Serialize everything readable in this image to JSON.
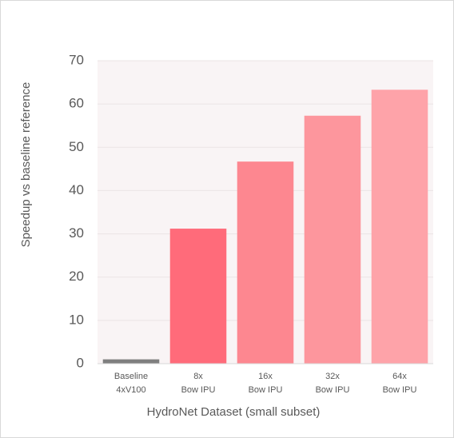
{
  "chart_data": {
    "type": "bar",
    "y_label": "Speedup vs baseline reference",
    "x_label": "HydroNet Dataset (small subset)",
    "categories": [
      [
        "Baseline",
        "4xV100"
      ],
      [
        "8x",
        "Bow IPU"
      ],
      [
        "16x",
        "Bow IPU"
      ],
      [
        "32x",
        "Bow IPU"
      ],
      [
        "64x",
        "Bow IPU"
      ]
    ],
    "values": [
      1,
      31.2,
      46.7,
      57.3,
      63.3
    ],
    "colors": [
      "#7f7f7f",
      "#ff6b7a",
      "#fd8790",
      "#fd969d",
      "#fea3a9"
    ],
    "ylim": [
      0,
      70
    ],
    "yticks": [
      0,
      10,
      20,
      30,
      40,
      50,
      60,
      70
    ],
    "grid": true
  }
}
